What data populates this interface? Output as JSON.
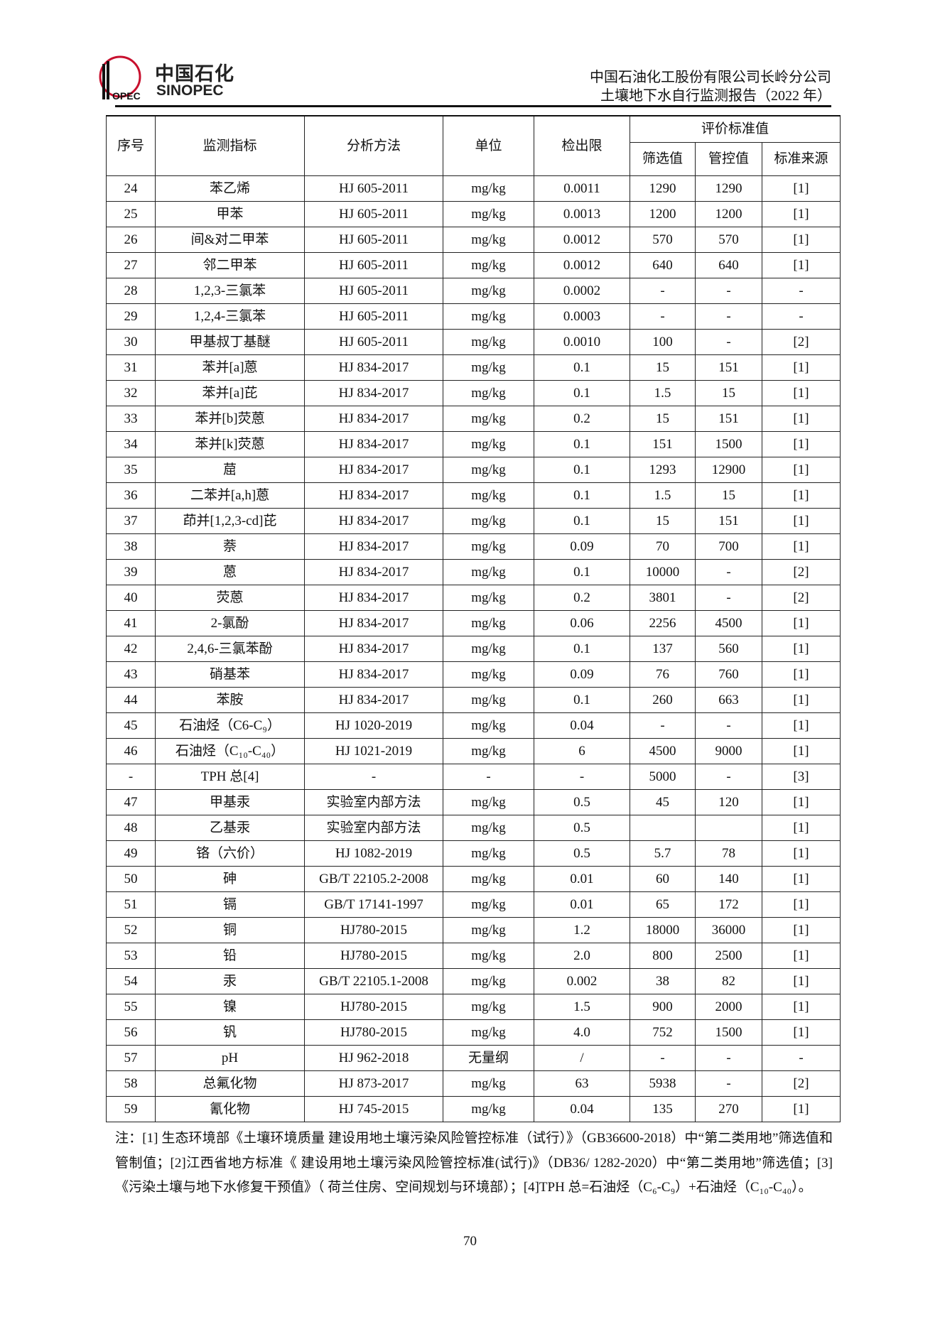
{
  "header": {
    "logo_cn": "中国石化",
    "logo_en": "SINOPEC",
    "company": "中国石油化工股份有限公司长岭分公司",
    "report_title": "土壤地下水自行监测报告（2022 年）",
    "brand_color": "#c8102e"
  },
  "table": {
    "headers": {
      "no": "序号",
      "indicator": "监测指标",
      "method": "分析方法",
      "unit": "单位",
      "limit": "检出限",
      "standard_group": "评价标准值",
      "screening": "筛选值",
      "control": "管控值",
      "source": "标准来源"
    },
    "rows": [
      [
        "24",
        "苯乙烯",
        "HJ 605-2011",
        "mg/kg",
        "0.0011",
        "1290",
        "1290",
        "[1]"
      ],
      [
        "25",
        "甲苯",
        "HJ 605-2011",
        "mg/kg",
        "0.0013",
        "1200",
        "1200",
        "[1]"
      ],
      [
        "26",
        "间&对二甲苯",
        "HJ 605-2011",
        "mg/kg",
        "0.0012",
        "570",
        "570",
        "[1]"
      ],
      [
        "27",
        "邻二甲苯",
        "HJ 605-2011",
        "mg/kg",
        "0.0012",
        "640",
        "640",
        "[1]"
      ],
      [
        "28",
        "1,2,3-三氯苯",
        "HJ 605-2011",
        "mg/kg",
        "0.0002",
        "-",
        "-",
        "-"
      ],
      [
        "29",
        "1,2,4-三氯苯",
        "HJ 605-2011",
        "mg/kg",
        "0.0003",
        "-",
        "-",
        "-"
      ],
      [
        "30",
        "甲基叔丁基醚",
        "HJ 605-2011",
        "mg/kg",
        "0.0010",
        "100",
        "-",
        "[2]"
      ],
      [
        "31",
        "苯并[a]蒽",
        "HJ 834-2017",
        "mg/kg",
        "0.1",
        "15",
        "151",
        "[1]"
      ],
      [
        "32",
        "苯并[a]芘",
        "HJ 834-2017",
        "mg/kg",
        "0.1",
        "1.5",
        "15",
        "[1]"
      ],
      [
        "33",
        "苯并[b]荧蒽",
        "HJ 834-2017",
        "mg/kg",
        "0.2",
        "15",
        "151",
        "[1]"
      ],
      [
        "34",
        "苯并[k]荧蒽",
        "HJ 834-2017",
        "mg/kg",
        "0.1",
        "151",
        "1500",
        "[1]"
      ],
      [
        "35",
        "䓛",
        "HJ 834-2017",
        "mg/kg",
        "0.1",
        "1293",
        "12900",
        "[1]"
      ],
      [
        "36",
        "二苯并[a,h]蒽",
        "HJ 834-2017",
        "mg/kg",
        "0.1",
        "1.5",
        "15",
        "[1]"
      ],
      [
        "37",
        "茚并[1,2,3-cd]芘",
        "HJ 834-2017",
        "mg/kg",
        "0.1",
        "15",
        "151",
        "[1]"
      ],
      [
        "38",
        "萘",
        "HJ 834-2017",
        "mg/kg",
        "0.09",
        "70",
        "700",
        "[1]"
      ],
      [
        "39",
        "蒽",
        "HJ 834-2017",
        "mg/kg",
        "0.1",
        "10000",
        "-",
        "[2]"
      ],
      [
        "40",
        "荧蒽",
        "HJ 834-2017",
        "mg/kg",
        "0.2",
        "3801",
        "-",
        "[2]"
      ],
      [
        "41",
        "2-氯酚",
        "HJ 834-2017",
        "mg/kg",
        "0.06",
        "2256",
        "4500",
        "[1]"
      ],
      [
        "42",
        "2,4,6-三氯苯酚",
        "HJ 834-2017",
        "mg/kg",
        "0.1",
        "137",
        "560",
        "[1]"
      ],
      [
        "43",
        "硝基苯",
        "HJ 834-2017",
        "mg/kg",
        "0.09",
        "76",
        "760",
        "[1]"
      ],
      [
        "44",
        "苯胺",
        "HJ 834-2017",
        "mg/kg",
        "0.1",
        "260",
        "663",
        "[1]"
      ],
      [
        "45",
        "石油烃（C6-C₉）",
        "HJ 1020-2019",
        "mg/kg",
        "0.04",
        "-",
        "-",
        "[1]"
      ],
      [
        "46",
        "石油烃（C₁₀-C₄₀）",
        "HJ 1021-2019",
        "mg/kg",
        "6",
        "4500",
        "9000",
        "[1]"
      ],
      [
        "-",
        "TPH 总[4]",
        "-",
        "-",
        "-",
        "5000",
        "-",
        "[3]"
      ],
      [
        "47",
        "甲基汞",
        "实验室内部方法",
        "mg/kg",
        "0.5",
        "45",
        "120",
        "[1]"
      ],
      [
        "48",
        "乙基汞",
        "实验室内部方法",
        "mg/kg",
        "0.5",
        "",
        "",
        "[1]"
      ],
      [
        "49",
        "铬（六价）",
        "HJ 1082-2019",
        "mg/kg",
        "0.5",
        "5.7",
        "78",
        "[1]"
      ],
      [
        "50",
        "砷",
        "GB/T 22105.2-2008",
        "mg/kg",
        "0.01",
        "60",
        "140",
        "[1]"
      ],
      [
        "51",
        "镉",
        "GB/T 17141-1997",
        "mg/kg",
        "0.01",
        "65",
        "172",
        "[1]"
      ],
      [
        "52",
        "铜",
        "HJ780-2015",
        "mg/kg",
        "1.2",
        "18000",
        "36000",
        "[1]"
      ],
      [
        "53",
        "铅",
        "HJ780-2015",
        "mg/kg",
        "2.0",
        "800",
        "2500",
        "[1]"
      ],
      [
        "54",
        "汞",
        "GB/T 22105.1-2008",
        "mg/kg",
        "0.002",
        "38",
        "82",
        "[1]"
      ],
      [
        "55",
        "镍",
        "HJ780-2015",
        "mg/kg",
        "1.5",
        "900",
        "2000",
        "[1]"
      ],
      [
        "56",
        "钒",
        "HJ780-2015",
        "mg/kg",
        "4.0",
        "752",
        "1500",
        "[1]"
      ],
      [
        "57",
        "pH",
        "HJ 962-2018",
        "无量纲",
        "/",
        "-",
        "-",
        "-"
      ],
      [
        "58",
        "总氟化物",
        "HJ 873-2017",
        "mg/kg",
        "63",
        "5938",
        "-",
        "[2]"
      ],
      [
        "59",
        "氰化物",
        "HJ 745-2015",
        "mg/kg",
        "0.04",
        "135",
        "270",
        "[1]"
      ]
    ]
  },
  "notes": "注：[1] 生态环境部《土壤环境质量 建设用地土壤污染风险管控标准（试行）》（GB36600-2018）中“第二类用地”筛选值和管制值；[2]江西省地方标准《 建设用地土壤污染风险管控标准(试行)》（DB36/ 1282-2020）中“第二类用地”筛选值；[3]《污染土壤与地下水修复干预值》（ 荷兰住房、空间规划与环境部）；[4]TPH 总=石油烃（C₆-C₉）+石油烃（C₁₀-C₄₀）。",
  "page_number": "70"
}
